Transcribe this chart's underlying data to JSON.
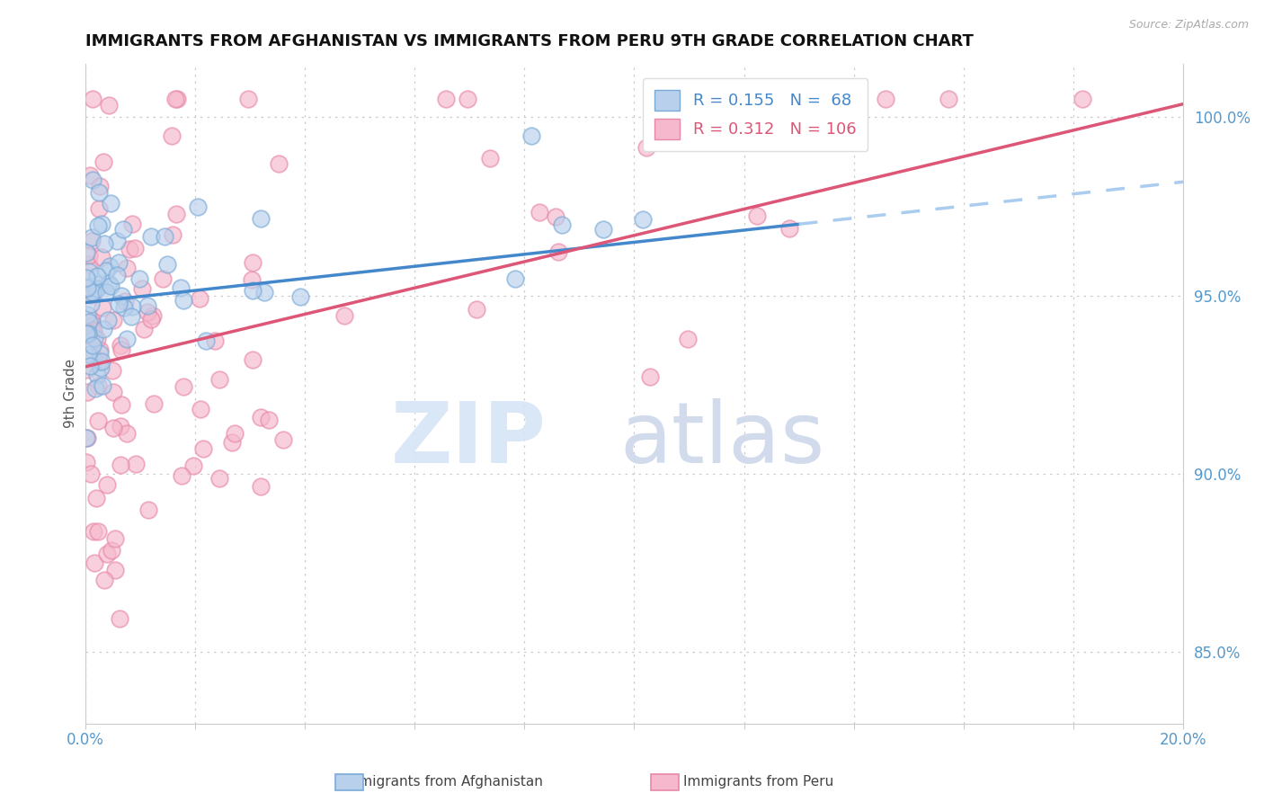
{
  "title": "IMMIGRANTS FROM AFGHANISTAN VS IMMIGRANTS FROM PERU 9TH GRADE CORRELATION CHART",
  "source": "Source: ZipAtlas.com",
  "ylabel": "9th Grade",
  "xlim": [
    0.0,
    20.0
  ],
  "ylim": [
    83.0,
    101.5
  ],
  "yticks": [
    85.0,
    90.0,
    95.0,
    100.0
  ],
  "afghanistan_R": 0.155,
  "afghanistan_N": 68,
  "peru_R": 0.312,
  "peru_N": 106,
  "afghanistan_color": "#b8d0ec",
  "afghanistan_edge": "#7aaad8",
  "peru_color": "#f5b8cc",
  "peru_edge": "#e888a8",
  "af_line_color": "#4488cc",
  "pe_line_color": "#dd5577",
  "dash_color": "#aaccee",
  "grid_color": "#cccccc",
  "text_color": "#111111",
  "axis_color": "#5599cc",
  "watermark_zip_color": "#d0dff5",
  "watermark_atlas_color": "#c8d5e8"
}
